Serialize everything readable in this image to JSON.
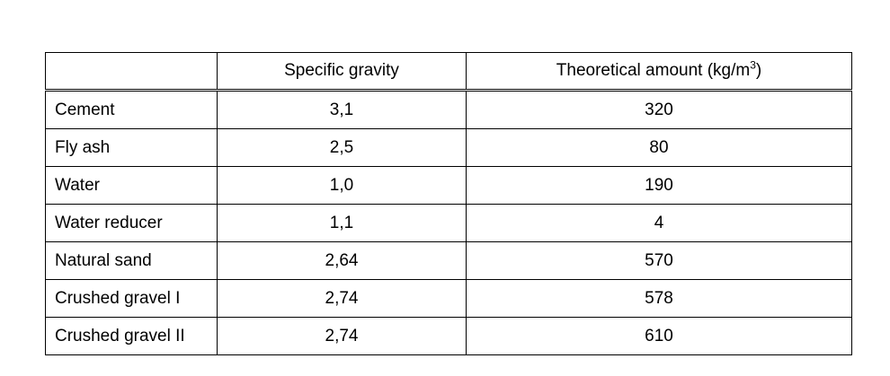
{
  "table": {
    "header": {
      "corner": "",
      "col_specific_gravity": "Specific gravity",
      "col_theoretical_amount": "Theoretical amount (kg/m",
      "col_theoretical_amount_sup": "3",
      "col_theoretical_amount_close": ")"
    },
    "rows": [
      {
        "material": "Cement",
        "specific_gravity": "3,1",
        "amount": "320"
      },
      {
        "material": "Fly ash",
        "specific_gravity": "2,5",
        "amount": "80"
      },
      {
        "material": "Water",
        "specific_gravity": "1,0",
        "amount": "190"
      },
      {
        "material": "Water reducer",
        "specific_gravity": "1,1",
        "amount": "4"
      },
      {
        "material": "Natural sand",
        "specific_gravity": "2,64",
        "amount": "570"
      },
      {
        "material": "Crushed gravel I",
        "specific_gravity": "2,74",
        "amount": "578"
      },
      {
        "material": "Crushed gravel II",
        "specific_gravity": "2,74",
        "amount": "610"
      }
    ]
  }
}
